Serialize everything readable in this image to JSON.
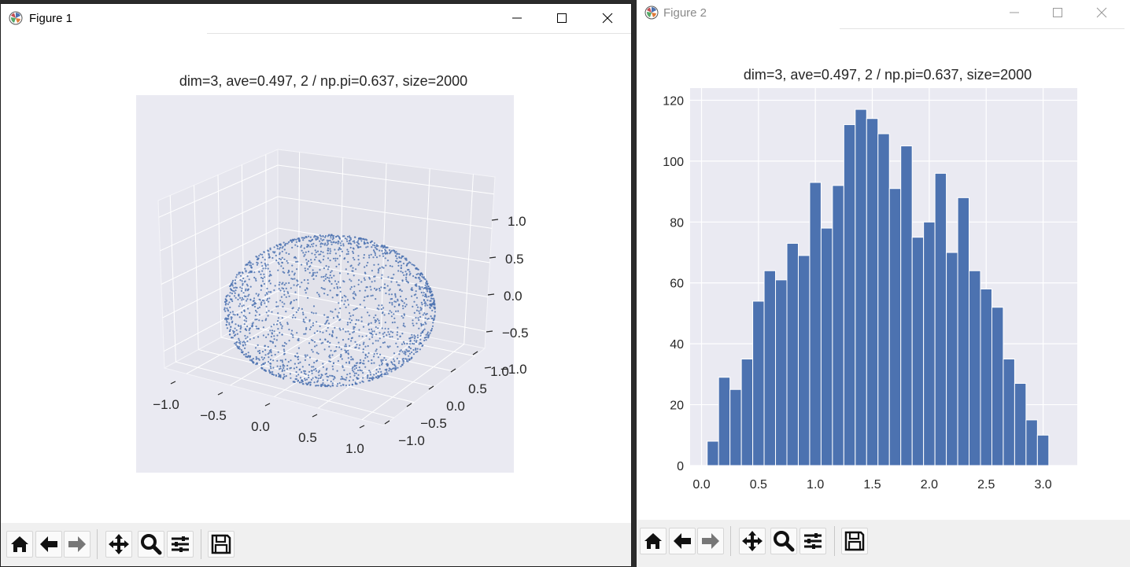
{
  "figure1": {
    "window_title": "Figure 1",
    "plot_title": "dim=3, ave=0.497, 2 / np.pi=0.637, size=2000",
    "chart_data": {
      "type": "scatter",
      "projection": "3d",
      "title": "dim=3, ave=0.497, 2 / np.pi=0.637, size=2000",
      "n_points": 2000,
      "shape": "points uniformly distributed on the unit sphere surface",
      "xlim": [
        -1.0,
        1.0
      ],
      "ylim": [
        -1.0,
        1.0
      ],
      "zlim": [
        -1.0,
        1.0
      ],
      "x_ticks": [
        "−1.0",
        "−0.5",
        "0.0",
        "0.5",
        "1.0"
      ],
      "y_ticks": [
        "−1.0",
        "−0.5",
        "0.0",
        "0.5",
        "1.0"
      ],
      "z_ticks": [
        "−1.0",
        "−0.5",
        "0.0",
        "0.5",
        "1.0"
      ],
      "marker_color": "#4c72b0",
      "grid": true
    }
  },
  "figure2": {
    "window_title": "Figure 2",
    "plot_title": "dim=3, ave=0.497, 2 / np.pi=0.637, size=2000",
    "chart_data": {
      "type": "bar",
      "title": "dim=3, ave=0.497, 2 / np.pi=0.637, size=2000",
      "bin_start": 0.05,
      "bin_width": 0.1,
      "values": [
        8,
        29,
        25,
        35,
        54,
        64,
        61,
        73,
        69,
        93,
        78,
        92,
        112,
        117,
        114,
        109,
        91,
        105,
        75,
        80,
        96,
        70,
        88,
        64,
        58,
        52,
        35,
        27,
        15,
        10
      ],
      "xlim": [
        -0.1,
        3.3
      ],
      "ylim": [
        0,
        124
      ],
      "x_ticks": [
        0.0,
        0.5,
        1.0,
        1.5,
        2.0,
        2.5,
        3.0
      ],
      "x_tick_labels": [
        "0.0",
        "0.5",
        "1.0",
        "1.5",
        "2.0",
        "2.5",
        "3.0"
      ],
      "y_ticks": [
        0,
        20,
        40,
        60,
        80,
        100,
        120
      ],
      "y_tick_labels": [
        "0",
        "20",
        "40",
        "60",
        "80",
        "100",
        "120"
      ],
      "bar_color": "#4c72b0",
      "grid": true
    }
  },
  "toolbar": {
    "buttons": [
      "home-icon",
      "back-arrow-icon",
      "forward-arrow-icon",
      "pan-move-icon",
      "zoom-magnifier-icon",
      "configure-subplots-icon",
      "save-floppy-icon"
    ]
  },
  "colors": {
    "axes_bg": "#eaeaf2",
    "grid": "#ffffff",
    "series": "#4c72b0",
    "toolbar_bg": "#f0f0f0"
  }
}
